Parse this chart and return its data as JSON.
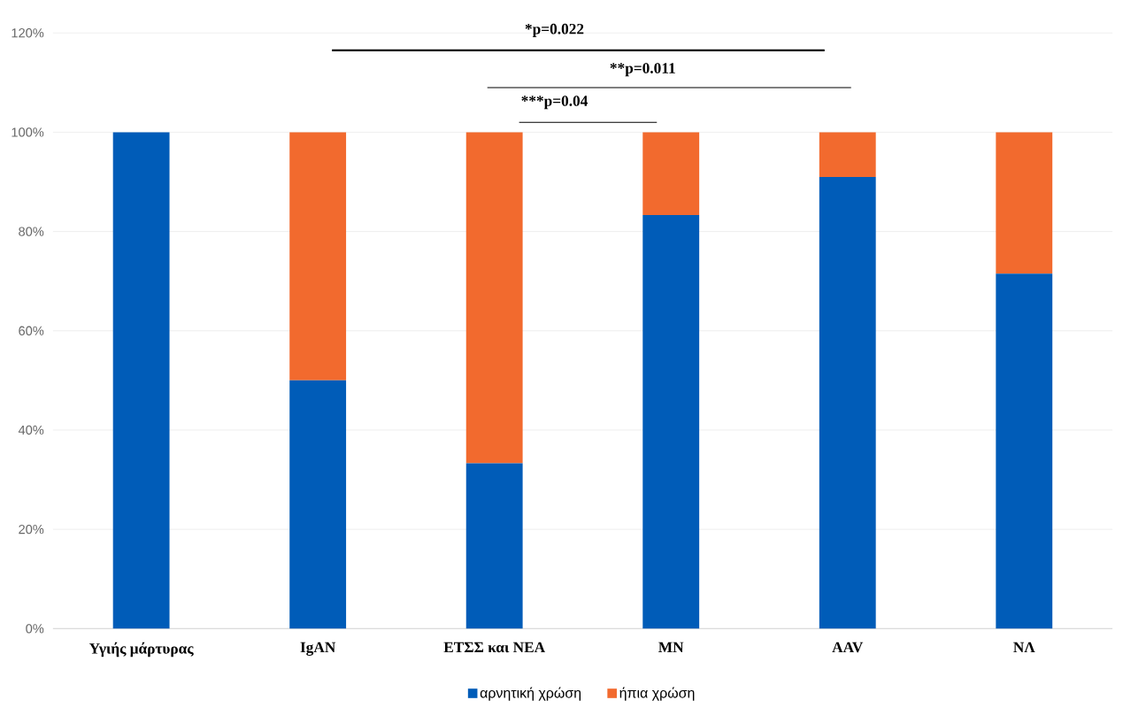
{
  "chart_data": {
    "type": "bar",
    "stacked": true,
    "categories": [
      "Υγιής μάρτυρας",
      "IgAN",
      "ΕΤΣΣ και ΝΕΑ",
      "MN",
      "AAV",
      "ΝΛ"
    ],
    "series": [
      {
        "name": "αρνητική χρώση",
        "color": "#005cb8",
        "values": [
          100,
          50,
          33.3,
          83.3,
          91,
          71.5
        ]
      },
      {
        "name": "ήπια χρώση",
        "color": "#f26a2e",
        "values": [
          0,
          50,
          66.7,
          16.7,
          9,
          28.5
        ]
      }
    ],
    "ylim": [
      0,
      120
    ],
    "yticks": [
      {
        "value": 0,
        "label": "0%"
      },
      {
        "value": 20,
        "label": "20%"
      },
      {
        "value": 40,
        "label": "40%"
      },
      {
        "value": 60,
        "label": "60%"
      },
      {
        "value": 80,
        "label": "80%"
      },
      {
        "value": 100,
        "label": "100%"
      },
      {
        "value": 120,
        "label": "120%"
      }
    ],
    "grid": "y",
    "legend": "bottom",
    "annotations": [
      "*p=0.022",
      "**p=0.011",
      "***p=0.04"
    ]
  }
}
